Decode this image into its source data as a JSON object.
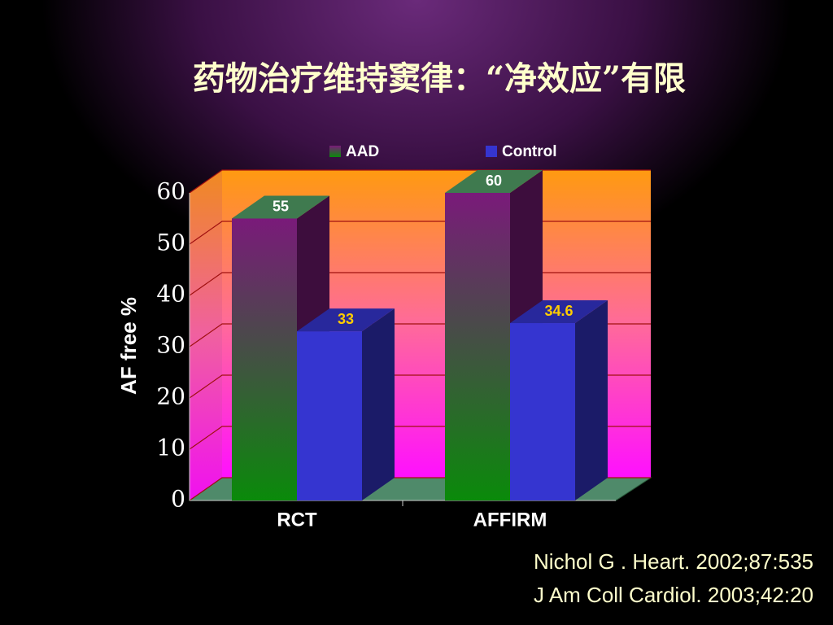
{
  "chart_data": {
    "type": "bar3d",
    "title": "药物治疗维持窦律：“净效应”有限",
    "y_label": "AF free %",
    "categories": [
      "RCT",
      "AFFIRM"
    ],
    "series": [
      {
        "name": "AAD",
        "color": "#7a1a7a",
        "color_bottom": "#0a8a0a",
        "label_color": "#ffffff",
        "values": [
          55,
          60
        ]
      },
      {
        "name": "Control",
        "color": "#3535d0",
        "color_bottom": "#3535d0",
        "label_color": "#ffcc00",
        "values": [
          33,
          34.6
        ]
      }
    ],
    "ylim": [
      0,
      60
    ],
    "yticks": [
      0,
      10,
      20,
      30,
      40,
      50,
      60
    ],
    "grid": true,
    "annotations": [
      "Nichol G . Heart. 2002;87:535",
      "J Am Coll Cardiol. 2003;42:20"
    ]
  }
}
